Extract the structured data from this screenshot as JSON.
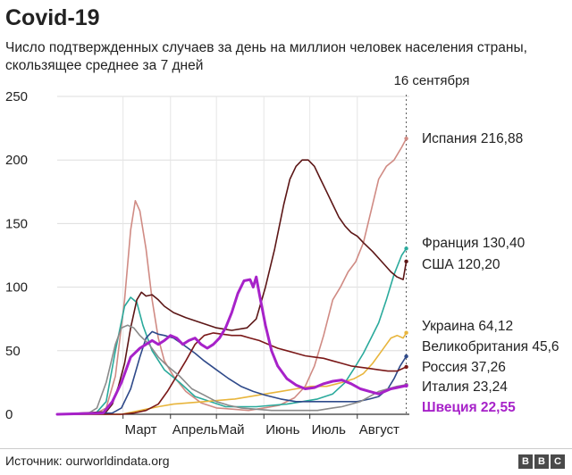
{
  "header": {
    "title": "Covid-19",
    "subtitle": "Число подтвержденных случаев за день на миллион человек населения страны, скользящее среднее за 7 дней"
  },
  "footer": {
    "source": "Источник: ourworldindata.org",
    "logo_letters": [
      "B",
      "B",
      "C"
    ]
  },
  "chart_data": {
    "type": "line",
    "title": "Covid-19",
    "xlabel": "",
    "ylabel": "",
    "ylim": [
      0,
      250
    ],
    "yticks": [
      0,
      50,
      100,
      150,
      200,
      250
    ],
    "x_unit": "days since 2020-02-01",
    "xlim": [
      0,
      230
    ],
    "month_ticks": [
      {
        "label": "Март",
        "x": 43
      },
      {
        "label": "Апрель",
        "x": 74
      },
      {
        "label": "Май",
        "x": 104
      },
      {
        "label": "Июнь",
        "x": 135
      },
      {
        "label": "Июль",
        "x": 165
      },
      {
        "label": "Август",
        "x": 196
      }
    ],
    "marker": {
      "label": "16 сентября",
      "x": 228
    },
    "grid": true,
    "series": [
      {
        "name": "Испания",
        "value_label": "216,88",
        "color": "#d08b84",
        "bold": false,
        "points": [
          [
            0,
            0
          ],
          [
            25,
            0.5
          ],
          [
            32,
            5
          ],
          [
            38,
            30
          ],
          [
            44,
            90
          ],
          [
            48,
            145
          ],
          [
            51,
            168
          ],
          [
            54,
            160
          ],
          [
            58,
            130
          ],
          [
            62,
            90
          ],
          [
            66,
            60
          ],
          [
            70,
            42
          ],
          [
            76,
            30
          ],
          [
            84,
            18
          ],
          [
            94,
            9
          ],
          [
            104,
            5
          ],
          [
            115,
            4
          ],
          [
            125,
            3
          ],
          [
            135,
            5
          ],
          [
            145,
            7
          ],
          [
            155,
            13
          ],
          [
            162,
            22
          ],
          [
            168,
            38
          ],
          [
            174,
            62
          ],
          [
            180,
            90
          ],
          [
            185,
            100
          ],
          [
            190,
            112
          ],
          [
            195,
            120
          ],
          [
            200,
            135
          ],
          [
            205,
            160
          ],
          [
            210,
            185
          ],
          [
            215,
            195
          ],
          [
            220,
            200
          ],
          [
            225,
            210
          ],
          [
            228,
            216.88
          ]
        ]
      },
      {
        "name": "Франция",
        "value_label": "130,40",
        "color": "#2aaa9c",
        "bold": false,
        "points": [
          [
            0,
            0
          ],
          [
            25,
            0.5
          ],
          [
            32,
            10
          ],
          [
            38,
            50
          ],
          [
            44,
            85
          ],
          [
            48,
            92
          ],
          [
            52,
            88
          ],
          [
            56,
            70
          ],
          [
            62,
            50
          ],
          [
            70,
            35
          ],
          [
            80,
            25
          ],
          [
            90,
            14
          ],
          [
            100,
            10
          ],
          [
            110,
            6
          ],
          [
            120,
            6
          ],
          [
            130,
            6
          ],
          [
            140,
            7
          ],
          [
            150,
            8
          ],
          [
            160,
            10
          ],
          [
            170,
            12
          ],
          [
            180,
            16
          ],
          [
            188,
            25
          ],
          [
            195,
            38
          ],
          [
            200,
            48
          ],
          [
            205,
            60
          ],
          [
            210,
            72
          ],
          [
            215,
            90
          ],
          [
            220,
            110
          ],
          [
            225,
            125
          ],
          [
            228,
            130.4
          ]
        ]
      },
      {
        "name": "США",
        "value_label": "120,20",
        "color": "#5c1616",
        "bold": false,
        "points": [
          [
            0,
            0
          ],
          [
            32,
            2
          ],
          [
            36,
            8
          ],
          [
            40,
            22
          ],
          [
            44,
            40
          ],
          [
            48,
            68
          ],
          [
            52,
            90
          ],
          [
            55,
            96
          ],
          [
            58,
            93
          ],
          [
            62,
            94
          ],
          [
            66,
            90
          ],
          [
            70,
            85
          ],
          [
            76,
            80
          ],
          [
            84,
            76
          ],
          [
            94,
            72
          ],
          [
            104,
            68
          ],
          [
            114,
            66
          ],
          [
            124,
            68
          ],
          [
            130,
            75
          ],
          [
            136,
            100
          ],
          [
            142,
            130
          ],
          [
            148,
            165
          ],
          [
            152,
            185
          ],
          [
            156,
            195
          ],
          [
            160,
            200
          ],
          [
            164,
            200
          ],
          [
            168,
            195
          ],
          [
            172,
            185
          ],
          [
            176,
            175
          ],
          [
            180,
            165
          ],
          [
            184,
            155
          ],
          [
            188,
            148
          ],
          [
            192,
            143
          ],
          [
            196,
            140
          ],
          [
            200,
            135
          ],
          [
            206,
            128
          ],
          [
            212,
            120
          ],
          [
            218,
            112
          ],
          [
            222,
            108
          ],
          [
            226,
            106
          ],
          [
            228,
            120.2
          ]
        ]
      },
      {
        "name": "Украина",
        "value_label": "64,12",
        "color": "#e8b53c",
        "bold": false,
        "points": [
          [
            0,
            0
          ],
          [
            42,
            0
          ],
          [
            50,
            2
          ],
          [
            58,
            4
          ],
          [
            66,
            6
          ],
          [
            76,
            8
          ],
          [
            86,
            9
          ],
          [
            96,
            10
          ],
          [
            106,
            11
          ],
          [
            116,
            12
          ],
          [
            126,
            14
          ],
          [
            136,
            16
          ],
          [
            146,
            18
          ],
          [
            156,
            20
          ],
          [
            166,
            22
          ],
          [
            176,
            22
          ],
          [
            186,
            25
          ],
          [
            194,
            28
          ],
          [
            200,
            32
          ],
          [
            206,
            40
          ],
          [
            212,
            50
          ],
          [
            218,
            60
          ],
          [
            222,
            62
          ],
          [
            226,
            60
          ],
          [
            228,
            64.12
          ]
        ]
      },
      {
        "name": "Великобритания",
        "value_label": "45,6",
        "color": "#2f4a8a",
        "bold": false,
        "points": [
          [
            0,
            0
          ],
          [
            36,
            1
          ],
          [
            42,
            5
          ],
          [
            48,
            20
          ],
          [
            54,
            45
          ],
          [
            58,
            60
          ],
          [
            62,
            65
          ],
          [
            66,
            63
          ],
          [
            70,
            62
          ],
          [
            76,
            60
          ],
          [
            82,
            55
          ],
          [
            90,
            48
          ],
          [
            96,
            42
          ],
          [
            104,
            35
          ],
          [
            112,
            28
          ],
          [
            120,
            22
          ],
          [
            128,
            18
          ],
          [
            136,
            15
          ],
          [
            146,
            12
          ],
          [
            156,
            10
          ],
          [
            166,
            10
          ],
          [
            176,
            10
          ],
          [
            186,
            10
          ],
          [
            196,
            10
          ],
          [
            204,
            12
          ],
          [
            210,
            14
          ],
          [
            216,
            20
          ],
          [
            220,
            28
          ],
          [
            224,
            38
          ],
          [
            228,
            45.6
          ]
        ]
      },
      {
        "name": "Россия",
        "value_label": "37,26",
        "color": "#7a1818",
        "bold": false,
        "points": [
          [
            0,
            0
          ],
          [
            42,
            0
          ],
          [
            50,
            1
          ],
          [
            58,
            3
          ],
          [
            66,
            8
          ],
          [
            72,
            18
          ],
          [
            78,
            30
          ],
          [
            84,
            42
          ],
          [
            90,
            55
          ],
          [
            96,
            62
          ],
          [
            102,
            64
          ],
          [
            108,
            63
          ],
          [
            114,
            62
          ],
          [
            120,
            62
          ],
          [
            126,
            60
          ],
          [
            132,
            58
          ],
          [
            138,
            55
          ],
          [
            144,
            52
          ],
          [
            150,
            50
          ],
          [
            156,
            48
          ],
          [
            162,
            46
          ],
          [
            168,
            45
          ],
          [
            174,
            44
          ],
          [
            180,
            42
          ],
          [
            186,
            40
          ],
          [
            192,
            38
          ],
          [
            198,
            37
          ],
          [
            204,
            36
          ],
          [
            210,
            35
          ],
          [
            216,
            34
          ],
          [
            222,
            34
          ],
          [
            228,
            37.26
          ]
        ]
      },
      {
        "name": "Италия",
        "value_label": "23,24",
        "color": "#8a8a8a",
        "bold": false,
        "points": [
          [
            0,
            0
          ],
          [
            20,
            0.5
          ],
          [
            26,
            5
          ],
          [
            32,
            25
          ],
          [
            38,
            55
          ],
          [
            42,
            68
          ],
          [
            46,
            70
          ],
          [
            50,
            68
          ],
          [
            54,
            62
          ],
          [
            60,
            55
          ],
          [
            66,
            45
          ],
          [
            72,
            38
          ],
          [
            80,
            30
          ],
          [
            88,
            20
          ],
          [
            96,
            15
          ],
          [
            104,
            10
          ],
          [
            112,
            7
          ],
          [
            120,
            5
          ],
          [
            130,
            4
          ],
          [
            140,
            3
          ],
          [
            150,
            3
          ],
          [
            160,
            3
          ],
          [
            170,
            3
          ],
          [
            180,
            5
          ],
          [
            186,
            6
          ],
          [
            192,
            8
          ],
          [
            198,
            10
          ],
          [
            204,
            14
          ],
          [
            210,
            18
          ],
          [
            216,
            20
          ],
          [
            222,
            22
          ],
          [
            228,
            23.24
          ]
        ]
      },
      {
        "name": "Швеция",
        "value_label": "22,55",
        "color": "#a722c9",
        "bold": true,
        "points": [
          [
            0,
            0
          ],
          [
            30,
            1
          ],
          [
            36,
            10
          ],
          [
            42,
            25
          ],
          [
            48,
            45
          ],
          [
            54,
            52
          ],
          [
            58,
            55
          ],
          [
            62,
            58
          ],
          [
            66,
            55
          ],
          [
            70,
            58
          ],
          [
            74,
            62
          ],
          [
            78,
            60
          ],
          [
            82,
            55
          ],
          [
            86,
            58
          ],
          [
            90,
            60
          ],
          [
            94,
            55
          ],
          [
            98,
            52
          ],
          [
            102,
            55
          ],
          [
            106,
            60
          ],
          [
            110,
            68
          ],
          [
            114,
            80
          ],
          [
            118,
            95
          ],
          [
            122,
            105
          ],
          [
            126,
            106
          ],
          [
            128,
            100
          ],
          [
            130,
            108
          ],
          [
            132,
            95
          ],
          [
            136,
            70
          ],
          [
            140,
            50
          ],
          [
            144,
            38
          ],
          [
            150,
            28
          ],
          [
            156,
            23
          ],
          [
            162,
            20
          ],
          [
            168,
            21
          ],
          [
            174,
            24
          ],
          [
            180,
            26
          ],
          [
            186,
            27
          ],
          [
            192,
            24
          ],
          [
            198,
            20
          ],
          [
            204,
            18
          ],
          [
            210,
            16
          ],
          [
            214,
            18
          ],
          [
            218,
            20
          ],
          [
            222,
            21
          ],
          [
            228,
            22.55
          ]
        ]
      }
    ]
  }
}
